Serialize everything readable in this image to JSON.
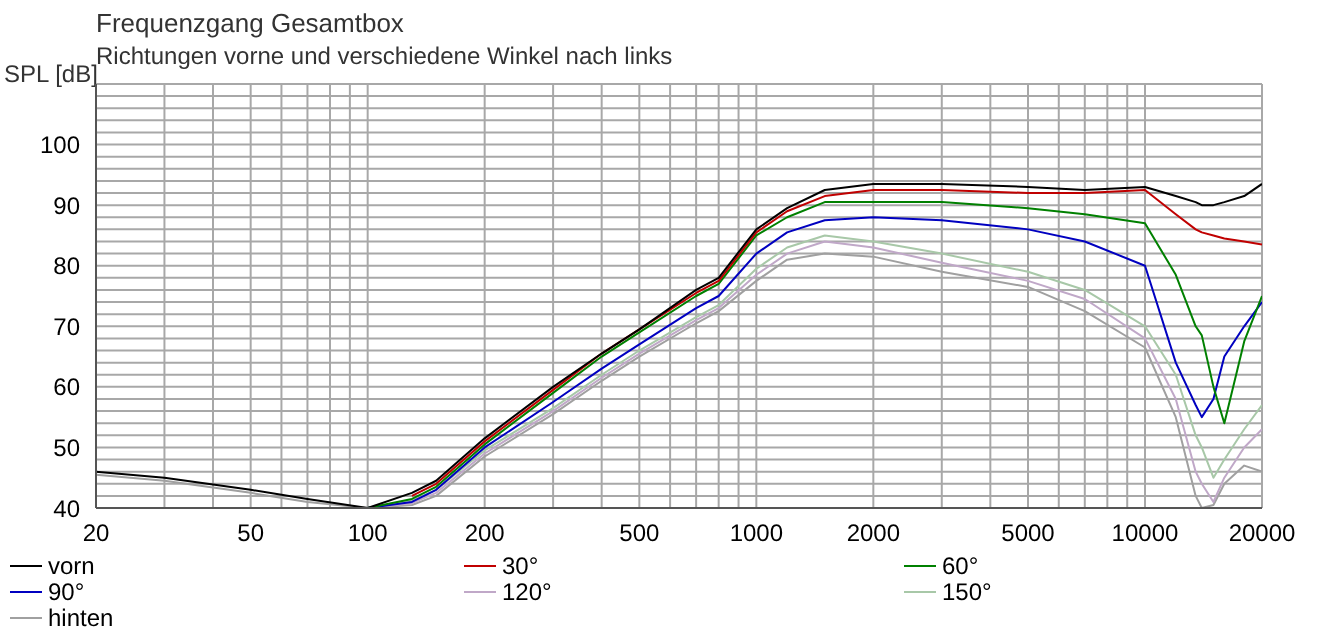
{
  "chart_data": {
    "type": "line",
    "title": "Frequenzgang Gesamtbox",
    "subtitle": "Richtungen vorne und verschiedene Winkel nach links",
    "ylabel": "SPL [dB]",
    "log": "x",
    "grid": true,
    "legend": "bottom",
    "marker": "none",
    "line_style": "solid",
    "xlim": [
      20,
      20000
    ],
    "xticks": [
      20,
      {
        "value": 30,
        "label": null
      },
      {
        "value": 40,
        "label": null
      },
      50,
      {
        "value": 60,
        "label": null
      },
      {
        "value": 70,
        "label": null
      },
      {
        "value": 80,
        "label": null
      },
      {
        "value": 90,
        "label": null
      },
      100,
      200,
      {
        "value": 300,
        "label": null
      },
      {
        "value": 400,
        "label": null
      },
      500,
      {
        "value": 600,
        "label": null
      },
      {
        "value": 700,
        "label": null
      },
      {
        "value": 800,
        "label": null
      },
      {
        "value": 900,
        "label": null
      },
      1000,
      2000,
      {
        "value": 3000,
        "label": null
      },
      {
        "value": 4000,
        "label": null
      },
      5000,
      {
        "value": 6000,
        "label": null
      },
      {
        "value": 7000,
        "label": null
      },
      {
        "value": 8000,
        "label": null
      },
      {
        "value": 9000,
        "label": null
      },
      10000,
      20000
    ],
    "ylim": [
      40,
      110
    ],
    "yticks": [
      40,
      {
        "value": 42,
        "label": null
      },
      {
        "value": 44,
        "label": null
      },
      {
        "value": 46,
        "label": null
      },
      {
        "value": 48,
        "label": null
      },
      50,
      {
        "value": 52,
        "label": null
      },
      {
        "value": 54,
        "label": null
      },
      {
        "value": 56,
        "label": null
      },
      {
        "value": 58,
        "label": null
      },
      60,
      {
        "value": 62,
        "label": null
      },
      {
        "value": 64,
        "label": null
      },
      {
        "value": 66,
        "label": null
      },
      {
        "value": 68,
        "label": null
      },
      70,
      {
        "value": 72,
        "label": null
      },
      {
        "value": 74,
        "label": null
      },
      {
        "value": 76,
        "label": null
      },
      {
        "value": 78,
        "label": null
      },
      80,
      {
        "value": 82,
        "label": null
      },
      {
        "value": 84,
        "label": null
      },
      {
        "value": 86,
        "label": null
      },
      {
        "value": 88,
        "label": null
      },
      90,
      {
        "value": 92,
        "label": null
      },
      {
        "value": 94,
        "label": null
      },
      {
        "value": 96,
        "label": null
      },
      {
        "value": 98,
        "label": null
      },
      100,
      {
        "value": 102,
        "label": null
      },
      {
        "value": 104,
        "label": null
      },
      {
        "value": 106,
        "label": null
      },
      {
        "value": 108,
        "label": null
      },
      {
        "value": 110,
        "label": null
      }
    ],
    "x": [
      20,
      30,
      50,
      70,
      100,
      130,
      150,
      200,
      300,
      400,
      500,
      700,
      800,
      1000,
      1200,
      1500,
      2000,
      3000,
      5000,
      7000,
      10000,
      12000,
      13500,
      14000,
      15000,
      16000,
      18000,
      20000
    ],
    "series": [
      {
        "name": "vorn",
        "color": "#000000",
        "values": [
          46,
          45,
          43,
          41.5,
          40,
          42.5,
          44.5,
          51.5,
          60,
          65.5,
          69.5,
          76,
          78,
          86,
          89.5,
          92.5,
          93.5,
          93.5,
          93,
          92.5,
          93,
          91.5,
          90.5,
          90,
          90,
          90.5,
          91.5,
          93.5
        ]
      },
      {
        "name": "30°",
        "color": "#c00000",
        "values": [
          null,
          null,
          null,
          null,
          null,
          42,
          44,
          51,
          59.5,
          65.5,
          69.5,
          75.5,
          77.5,
          85.5,
          89,
          91.5,
          92.5,
          92.5,
          92,
          92,
          92.5,
          88.5,
          86,
          85.5,
          85,
          84.5,
          84,
          83.5
        ]
      },
      {
        "name": "60°",
        "color": "#008000",
        "values": [
          null,
          null,
          null,
          null,
          40,
          41.5,
          43.5,
          50.5,
          59,
          65,
          69,
          75,
          77,
          85,
          88,
          90.5,
          90.5,
          90.5,
          89.5,
          88.5,
          87,
          78.5,
          70,
          68.5,
          60,
          54,
          67.5,
          75
        ]
      },
      {
        "name": "90°",
        "color": "#0000c0",
        "values": [
          null,
          null,
          null,
          null,
          40,
          41,
          43,
          50,
          57.5,
          63,
          67,
          73,
          75,
          82,
          85.5,
          87.5,
          88,
          87.5,
          86,
          84,
          80,
          64,
          57,
          55,
          58,
          65,
          70,
          74
        ]
      },
      {
        "name": "120°",
        "color": "#c0a8c8",
        "values": [
          null,
          null,
          null,
          null,
          40,
          40.8,
          42.5,
          49,
          56,
          61.5,
          65.5,
          71,
          73,
          78.5,
          82,
          84,
          83,
          80.5,
          77.5,
          74.5,
          68,
          58,
          46,
          44,
          41,
          45,
          50,
          53
        ]
      },
      {
        "name": "150°",
        "color": "#a8c8a8",
        "values": [
          null,
          null,
          null,
          null,
          40,
          41.2,
          43,
          49.5,
          56.5,
          62,
          66,
          71.5,
          73.5,
          79.5,
          83,
          85,
          84,
          82,
          79,
          76,
          70,
          62,
          52,
          50,
          45,
          48,
          53,
          57
        ]
      },
      {
        "name": "hinten",
        "color": "#a0a0a0",
        "values": [
          45.5,
          44.5,
          42.5,
          41,
          40,
          40.5,
          42,
          48.5,
          55.5,
          61,
          65,
          70.5,
          72.5,
          77.5,
          81,
          82,
          81.5,
          79,
          76.5,
          72.5,
          66.5,
          55,
          42,
          40,
          40.5,
          44,
          47,
          46
        ]
      }
    ]
  }
}
